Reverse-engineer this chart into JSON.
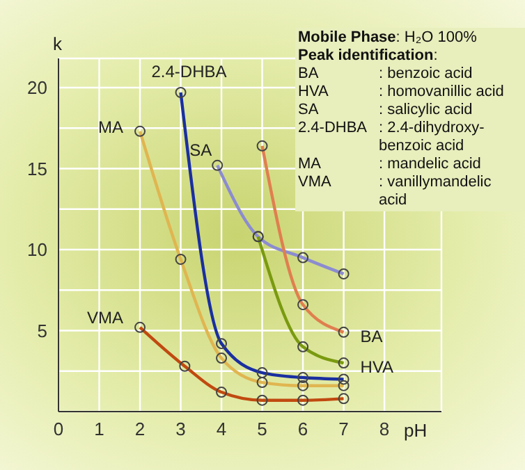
{
  "chart_data": {
    "type": "line",
    "xlabel": "pH",
    "ylabel": "k",
    "xlim": [
      0,
      9.4
    ],
    "ylim": [
      0,
      21.8
    ],
    "xticks": [
      0,
      1,
      2,
      3,
      4,
      5,
      6,
      7,
      8
    ],
    "yticks": [
      {
        "value": 2.5,
        "label": null
      },
      5,
      {
        "value": 7.5,
        "label": null
      },
      10,
      {
        "value": 12.5,
        "label": null
      },
      15,
      {
        "value": 17.5,
        "label": null
      },
      20
    ],
    "grid": true,
    "marker": "circle",
    "line_style": "solid",
    "series": [
      {
        "name": "MA",
        "color": "#e0b550",
        "x": [
          2,
          3,
          4,
          5,
          6,
          7
        ],
        "values": [
          17.3,
          9.4,
          3.3,
          1.8,
          1.6,
          1.6
        ]
      },
      {
        "name": "2.4-DHBA",
        "color": "#1a2fa0",
        "x": [
          3,
          4,
          5,
          6,
          7
        ],
        "values": [
          19.7,
          4.2,
          2.4,
          2.1,
          2.0
        ]
      },
      {
        "name": "SA",
        "color": "#8c8cd0",
        "x": [
          3.9,
          4.9,
          6,
          7
        ],
        "values": [
          15.2,
          10.8,
          9.5,
          8.5
        ]
      },
      {
        "name": "BA",
        "color": "#e07f4f",
        "x": [
          5,
          6,
          7
        ],
        "values": [
          16.4,
          6.6,
          4.9
        ]
      },
      {
        "name": "HVA",
        "color": "#7a9a10",
        "x": [
          4.9,
          6,
          7
        ],
        "values": [
          10.8,
          4.0,
          3.0
        ]
      },
      {
        "name": "VMA",
        "color": "#c04a10",
        "x": [
          2,
          3.1,
          4,
          5,
          6,
          7
        ],
        "values": [
          5.2,
          2.8,
          1.2,
          0.7,
          0.7,
          0.8
        ]
      }
    ],
    "annotations": [
      "Mobile Phase: H₂O 100%",
      "Peak identification:",
      "BA : benzoic acid",
      "HVA : homovanillic acid",
      "SA : salicylic acid",
      "2.4-DHBA : 2.4-dihydroxy-benzoic acid",
      "MA : mandelic acid",
      "VMA : vanillymandelic acid"
    ]
  }
}
